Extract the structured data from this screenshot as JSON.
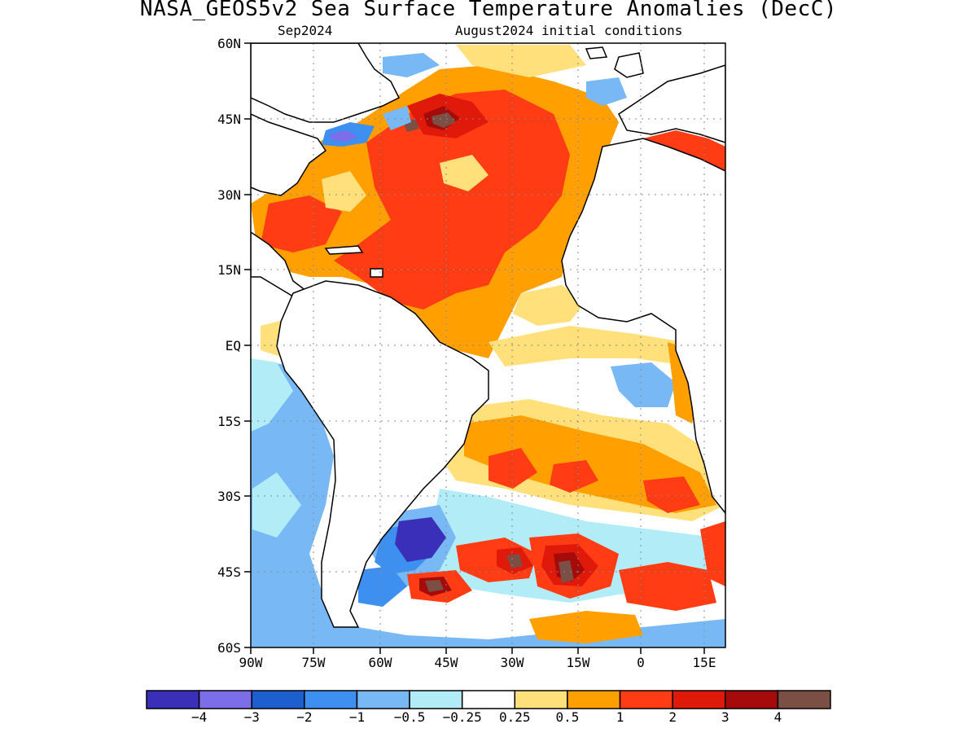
{
  "title": "NASA_GEOS5v2 Sea Surface Temperature Anomalies (DecC)",
  "subtitle_left": "Sep2024",
  "subtitle_right": "August2024 initial conditions",
  "lat_labels": [
    "60N",
    "45N",
    "30N",
    "15N",
    "EQ",
    "15S",
    "30S",
    "45S",
    "60S"
  ],
  "lon_labels": [
    "90W",
    "75W",
    "60W",
    "45W",
    "30W",
    "15W",
    "0",
    "15E"
  ],
  "colorbar": {
    "colors": [
      "#3a2fb8",
      "#7b6ee8",
      "#1e5fcf",
      "#3d8ff0",
      "#78b8f5",
      "#b2edf7",
      "#ffffff",
      "#ffe07a",
      "#ff9f00",
      "#ff3c14",
      "#df1a0a",
      "#a50b0b",
      "#7b4f43"
    ],
    "labels": [
      "−4",
      "−3",
      "−2",
      "−1",
      "−0.5",
      "−0.25",
      "0.25",
      "0.5",
      "1",
      "2",
      "3",
      "4"
    ]
  }
}
